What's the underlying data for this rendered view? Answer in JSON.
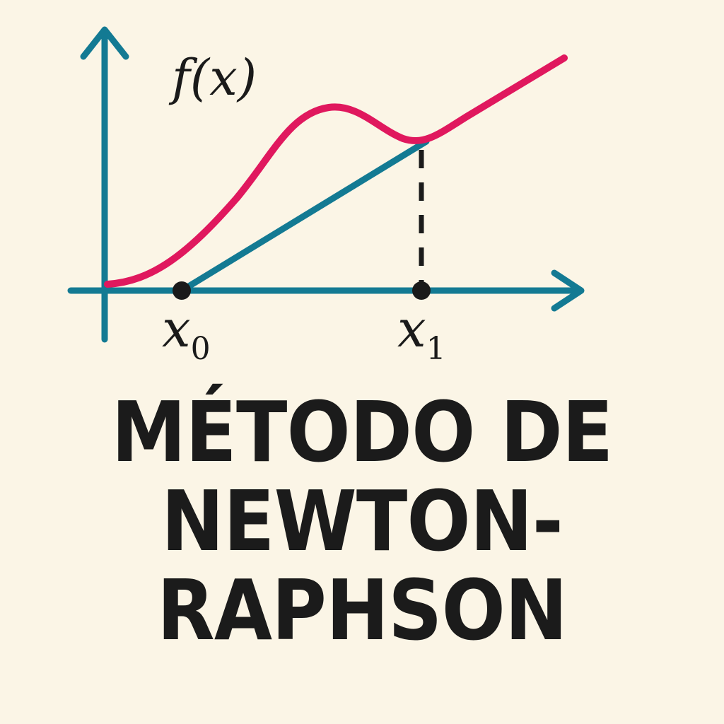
{
  "diagram": {
    "function_label": "f(x)",
    "x0_label": {
      "base": "x",
      "sub": "0"
    },
    "x1_label": {
      "base": "x",
      "sub": "1"
    },
    "colors": {
      "axis": "#137a93",
      "curve": "#e0185e",
      "tangent": "#137a93",
      "point": "#1a1a1a",
      "text": "#1b1b1b",
      "background": "#fbf5e6"
    }
  },
  "title": {
    "lines": [
      "MÉTODO DE",
      "NEWTON-",
      "RAPHSON"
    ]
  }
}
